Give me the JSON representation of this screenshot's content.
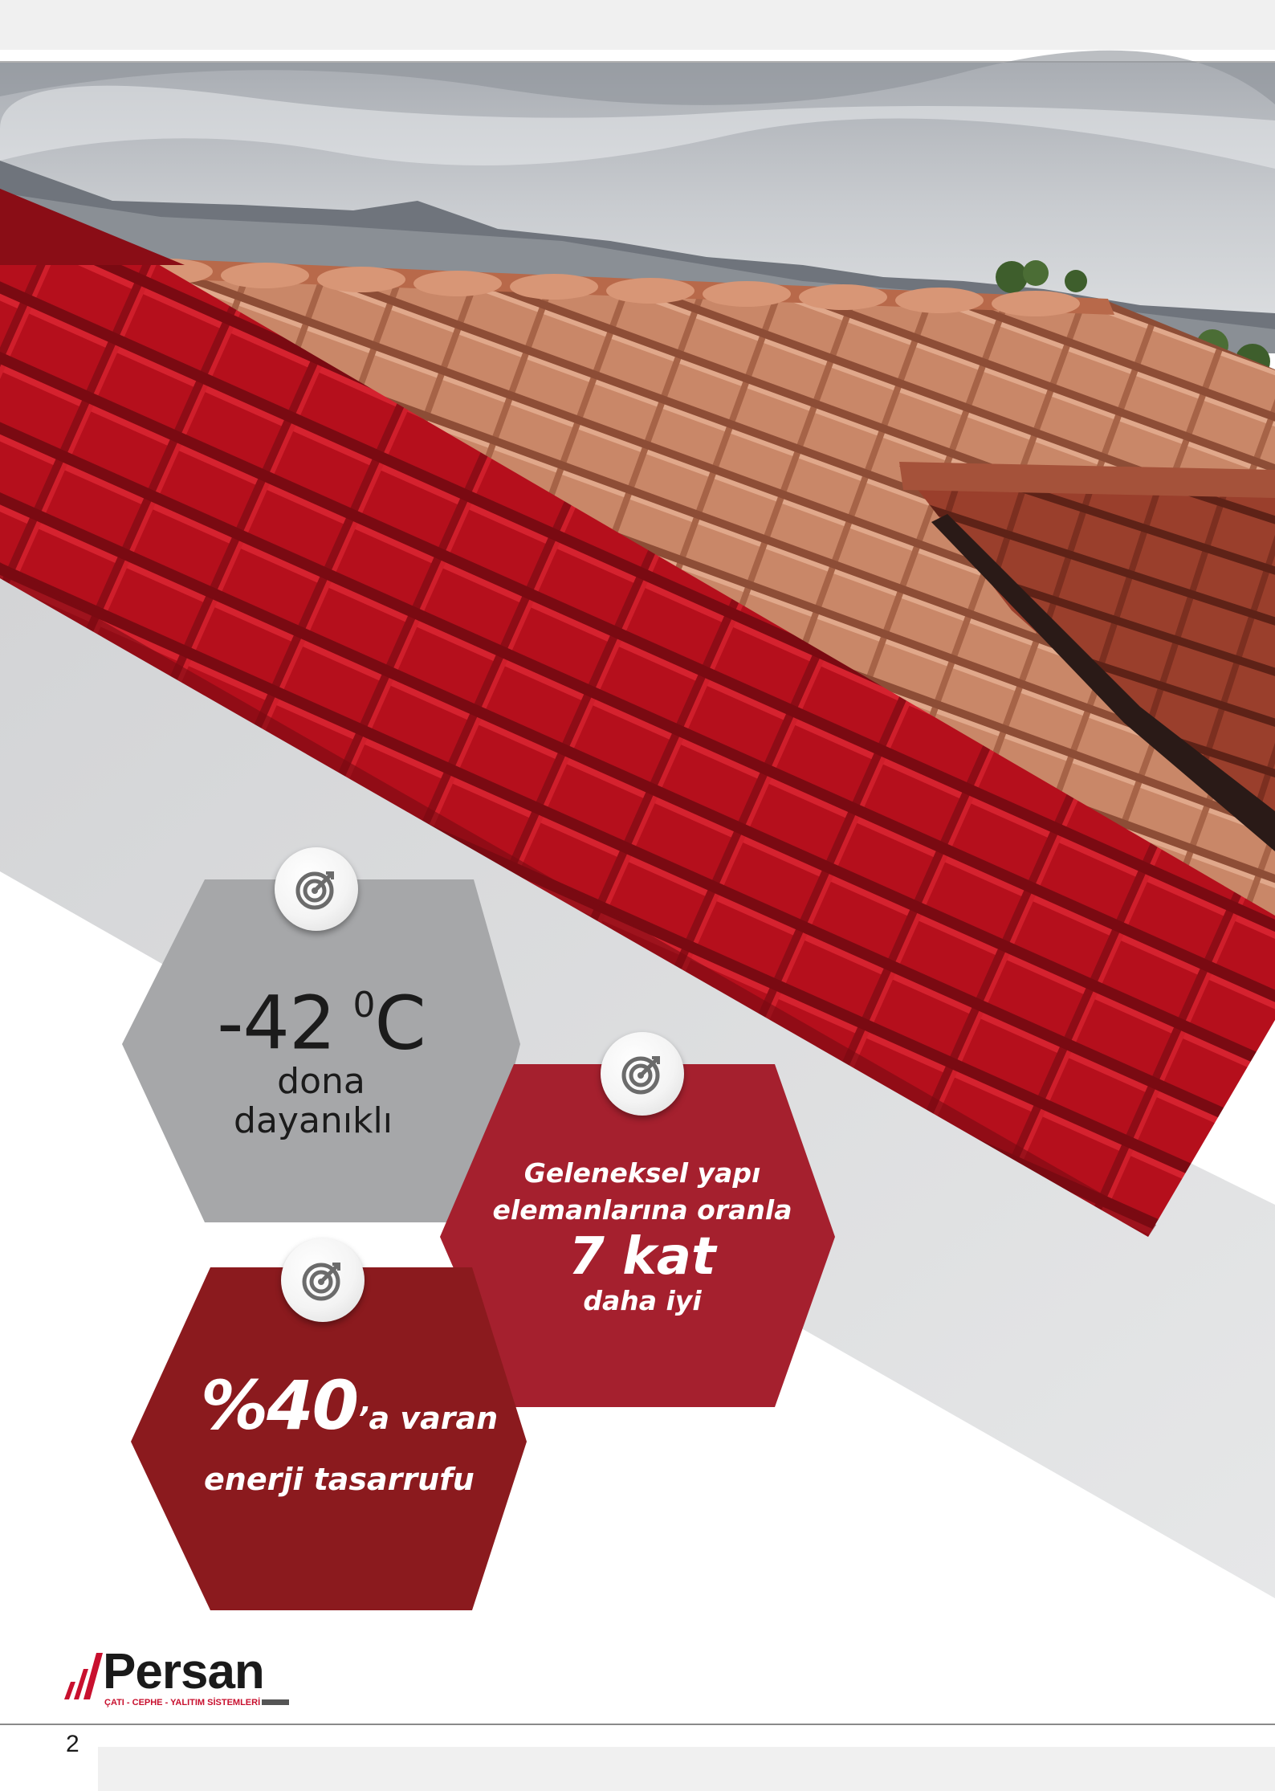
{
  "hex_cold": {
    "value": "-42",
    "unit_sup": "0",
    "unit": "C",
    "line1": "dona",
    "line2": "dayanıklı",
    "icon": "target-icon"
  },
  "hex_build": {
    "line1": "Geleneksel yapı",
    "line2": "elemanlarına oranla",
    "highlight": "7 kat",
    "line3": "daha iyi",
    "icon": "target-icon"
  },
  "hex_energy": {
    "highlight": "%40",
    "suffix": "’a varan",
    "line2": "enerji tasarrufu",
    "icon": "target-icon"
  },
  "brand": {
    "name": "Persan",
    "tagline": "ÇATI - CEPHE - YALITIM SİSTEMLERİ",
    "color": "#c8102e"
  },
  "footer": {
    "page_number": "2"
  },
  "colors": {
    "grey_hex": "#a6a7a9",
    "red_hex": "#a5202e",
    "dark_red_hex": "#8b1a1e",
    "tile_red": "#b50f1c"
  }
}
